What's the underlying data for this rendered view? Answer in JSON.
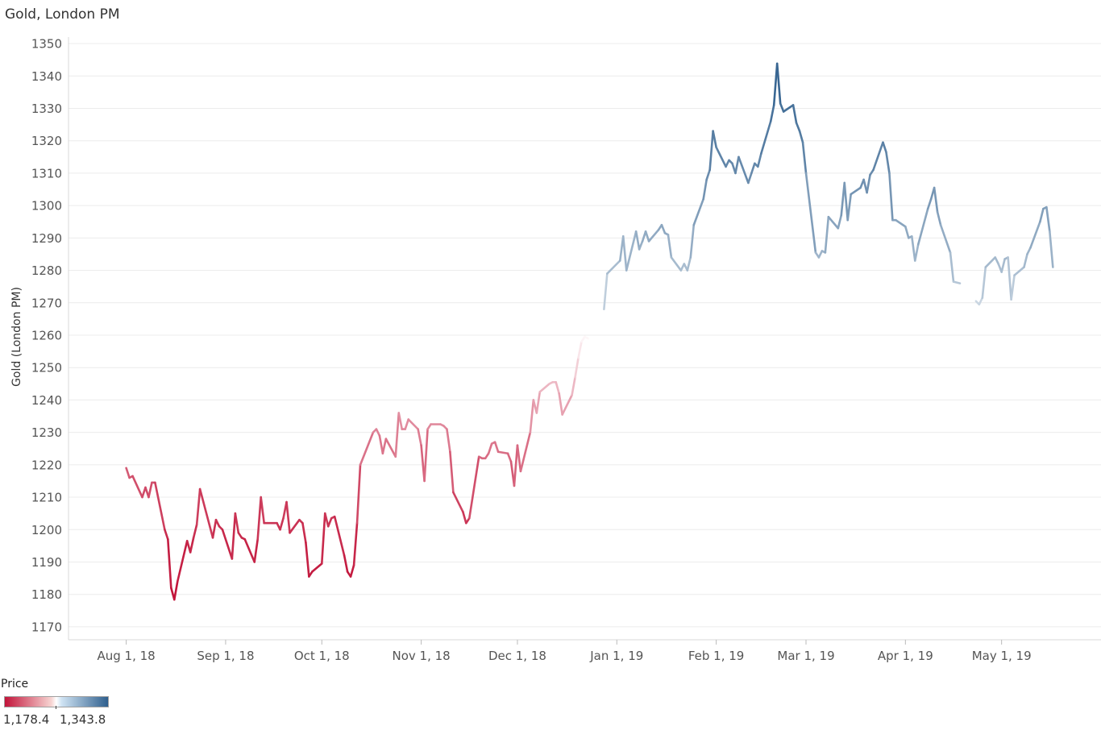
{
  "chart_data": {
    "type": "line",
    "title": "Gold, London PM",
    "ylabel": "Gold (London PM)",
    "xlabel": "",
    "ylim": [
      1166,
      1352
    ],
    "yticks": [
      1170,
      1180,
      1190,
      1200,
      1210,
      1220,
      1230,
      1240,
      1250,
      1260,
      1270,
      1280,
      1290,
      1300,
      1310,
      1320,
      1330,
      1340,
      1350
    ],
    "xlim": [
      "2018-07-14",
      "2019-06-01"
    ],
    "xticks": [
      {
        "date": "2018-08-01",
        "label": "Aug 1, 18"
      },
      {
        "date": "2018-09-01",
        "label": "Sep 1, 18"
      },
      {
        "date": "2018-10-01",
        "label": "Oct 1, 18"
      },
      {
        "date": "2018-11-01",
        "label": "Nov 1, 18"
      },
      {
        "date": "2018-12-01",
        "label": "Dec 1, 18"
      },
      {
        "date": "2019-01-01",
        "label": "Jan 1, 19"
      },
      {
        "date": "2019-02-01",
        "label": "Feb 1, 19"
      },
      {
        "date": "2019-03-01",
        "label": "Mar 1, 19"
      },
      {
        "date": "2019-04-01",
        "label": "Apr 1, 19"
      },
      {
        "date": "2019-05-01",
        "label": "May 1, 19"
      }
    ],
    "grid": true,
    "color_scale": {
      "title": "Price",
      "min": 1178.4,
      "max": 1343.8,
      "min_label": "1,178.4",
      "max_label": "1,343.8",
      "low_color": "#c2143a",
      "mid_color": "#ffffff",
      "high_color": "#2f5f8d"
    },
    "series": [
      {
        "points": [
          [
            "2018-08-01",
            1219
          ],
          [
            "2018-08-02",
            1216
          ],
          [
            "2018-08-03",
            1216.5
          ],
          [
            "2018-08-06",
            1210
          ],
          [
            "2018-08-07",
            1213
          ],
          [
            "2018-08-08",
            1210
          ],
          [
            "2018-08-09",
            1214.5
          ],
          [
            "2018-08-10",
            1214.5
          ],
          [
            "2018-08-13",
            1200
          ],
          [
            "2018-08-14",
            1197
          ],
          [
            "2018-08-15",
            1182
          ],
          [
            "2018-08-16",
            1178.4
          ],
          [
            "2018-08-17",
            1184
          ],
          [
            "2018-08-20",
            1196.5
          ],
          [
            "2018-08-21",
            1193
          ],
          [
            "2018-08-22",
            1197.5
          ],
          [
            "2018-08-23",
            1201.5
          ],
          [
            "2018-08-24",
            1212.5
          ],
          [
            "2018-08-28",
            1197.5
          ],
          [
            "2018-08-29",
            1203
          ],
          [
            "2018-08-30",
            1201
          ],
          [
            "2018-08-31",
            1200
          ],
          [
            "2018-09-03",
            1191
          ],
          [
            "2018-09-04",
            1205
          ],
          [
            "2018-09-05",
            1199
          ],
          [
            "2018-09-06",
            1197.5
          ],
          [
            "2018-09-07",
            1197
          ],
          [
            "2018-09-10",
            1190
          ],
          [
            "2018-09-11",
            1197
          ],
          [
            "2018-09-12",
            1210
          ],
          [
            "2018-09-13",
            1202
          ],
          [
            "2018-09-14",
            1202
          ],
          [
            "2018-09-17",
            1202
          ],
          [
            "2018-09-18",
            1200
          ],
          [
            "2018-09-19",
            1203.5
          ],
          [
            "2018-09-20",
            1208.5
          ],
          [
            "2018-09-21",
            1199
          ],
          [
            "2018-09-24",
            1203
          ],
          [
            "2018-09-25",
            1202
          ],
          [
            "2018-09-26",
            1196
          ],
          [
            "2018-09-27",
            1185.5
          ],
          [
            "2018-09-28",
            1187
          ],
          [
            "2018-10-01",
            1189.5
          ],
          [
            "2018-10-02",
            1205
          ],
          [
            "2018-10-03",
            1201
          ],
          [
            "2018-10-04",
            1203.5
          ],
          [
            "2018-10-05",
            1204
          ],
          [
            "2018-10-08",
            1192
          ],
          [
            "2018-10-09",
            1187
          ],
          [
            "2018-10-10",
            1185.5
          ],
          [
            "2018-10-11",
            1189
          ],
          [
            "2018-10-12",
            1202
          ],
          [
            "2018-10-13",
            1220
          ],
          [
            "2018-10-17",
            1230
          ],
          [
            "2018-10-18",
            1231
          ],
          [
            "2018-10-19",
            1229
          ],
          [
            "2018-10-20",
            1223.5
          ],
          [
            "2018-10-21",
            1228
          ],
          [
            "2018-10-24",
            1222.5
          ],
          [
            "2018-10-25",
            1236
          ],
          [
            "2018-10-26",
            1231
          ],
          [
            "2018-10-27",
            1231
          ],
          [
            "2018-10-28",
            1234
          ],
          [
            "2018-10-31",
            1231
          ],
          [
            "2018-11-01",
            1226
          ],
          [
            "2018-11-02",
            1215
          ],
          [
            "2018-11-03",
            1231
          ],
          [
            "2018-11-04",
            1232.5
          ],
          [
            "2018-11-07",
            1232.5
          ],
          [
            "2018-11-08",
            1232
          ],
          [
            "2018-11-09",
            1231
          ],
          [
            "2018-11-10",
            1224
          ],
          [
            "2018-11-11",
            1211.5
          ],
          [
            "2018-11-14",
            1205.5
          ],
          [
            "2018-11-15",
            1202
          ],
          [
            "2018-11-16",
            1203.5
          ],
          [
            "2018-11-19",
            1222.5
          ],
          [
            "2018-11-20",
            1222
          ],
          [
            "2018-11-21",
            1222
          ],
          [
            "2018-11-22",
            1223.5
          ],
          [
            "2018-11-23",
            1226.5
          ],
          [
            "2018-11-24",
            1227
          ],
          [
            "2018-11-25",
            1224
          ],
          [
            "2018-11-28",
            1223.5
          ],
          [
            "2018-11-29",
            1221
          ],
          [
            "2018-11-30",
            1213.5
          ],
          [
            "2018-12-01",
            1226
          ],
          [
            "2018-12-02",
            1218
          ],
          [
            "2018-12-05",
            1230
          ],
          [
            "2018-12-06",
            1240
          ],
          [
            "2018-12-07",
            1236
          ],
          [
            "2018-12-08",
            1242.5
          ],
          [
            "2018-12-11",
            1245
          ],
          [
            "2018-12-12",
            1245.5
          ],
          [
            "2018-12-13",
            1245.5
          ],
          [
            "2018-12-14",
            1242
          ],
          [
            "2018-12-15",
            1235.5
          ],
          [
            "2018-12-18",
            1241.5
          ],
          [
            "2018-12-19",
            1247
          ],
          [
            "2018-12-20",
            1253
          ],
          [
            "2018-12-21",
            1258
          ],
          [
            "2018-12-22",
            1259.5
          ],
          [
            "2018-12-23",
            1259
          ],
          [
            "2018-12-28",
            1268
          ],
          [
            "2018-12-29",
            1279
          ],
          [
            "2019-01-02",
            1283
          ],
          [
            "2019-01-03",
            1290.5
          ],
          [
            "2019-01-04",
            1280
          ],
          [
            "2019-01-07",
            1292
          ],
          [
            "2019-01-08",
            1286.5
          ],
          [
            "2019-01-09",
            1289
          ],
          [
            "2019-01-10",
            1292
          ],
          [
            "2019-01-11",
            1289
          ],
          [
            "2019-01-14",
            1292.5
          ],
          [
            "2019-01-15",
            1294
          ],
          [
            "2019-01-16",
            1291.5
          ],
          [
            "2019-01-17",
            1291
          ],
          [
            "2019-01-18",
            1284
          ],
          [
            "2019-01-21",
            1280
          ],
          [
            "2019-01-22",
            1282
          ],
          [
            "2019-01-23",
            1280
          ],
          [
            "2019-01-24",
            1284
          ],
          [
            "2019-01-25",
            1294
          ],
          [
            "2019-01-28",
            1302
          ],
          [
            "2019-01-29",
            1308
          ],
          [
            "2019-01-30",
            1311
          ],
          [
            "2019-01-31",
            1323
          ],
          [
            "2019-02-01",
            1318
          ],
          [
            "2019-02-04",
            1312
          ],
          [
            "2019-02-05",
            1314
          ],
          [
            "2019-02-06",
            1313
          ],
          [
            "2019-02-07",
            1310
          ],
          [
            "2019-02-08",
            1315
          ],
          [
            "2019-02-11",
            1307
          ],
          [
            "2019-02-12",
            1310
          ],
          [
            "2019-02-13",
            1313
          ],
          [
            "2019-02-14",
            1312
          ],
          [
            "2019-02-15",
            1316
          ],
          [
            "2019-02-18",
            1326
          ],
          [
            "2019-02-19",
            1331
          ],
          [
            "2019-02-20",
            1343.8
          ],
          [
            "2019-02-21",
            1331.5
          ],
          [
            "2019-02-22",
            1329
          ],
          [
            "2019-02-25",
            1331
          ],
          [
            "2019-02-26",
            1325.5
          ],
          [
            "2019-02-27",
            1323
          ],
          [
            "2019-02-28",
            1319.5
          ],
          [
            "2019-03-01",
            1310
          ],
          [
            "2019-03-04",
            1285.5
          ],
          [
            "2019-03-05",
            1284
          ],
          [
            "2019-03-06",
            1286
          ],
          [
            "2019-03-07",
            1285.5
          ],
          [
            "2019-03-08",
            1296.5
          ],
          [
            "2019-03-11",
            1293
          ],
          [
            "2019-03-12",
            1297
          ],
          [
            "2019-03-13",
            1307
          ],
          [
            "2019-03-14",
            1295.5
          ],
          [
            "2019-03-15",
            1303.5
          ],
          [
            "2019-03-18",
            1305.5
          ],
          [
            "2019-03-19",
            1308
          ],
          [
            "2019-03-20",
            1304
          ],
          [
            "2019-03-21",
            1309.5
          ],
          [
            "2019-03-22",
            1311
          ],
          [
            "2019-03-25",
            1319.5
          ],
          [
            "2019-03-26",
            1316.5
          ],
          [
            "2019-03-27",
            1310
          ],
          [
            "2019-03-28",
            1295.5
          ],
          [
            "2019-03-29",
            1295.5
          ],
          [
            "2019-04-01",
            1293.5
          ],
          [
            "2019-04-02",
            1290
          ],
          [
            "2019-04-03",
            1290.5
          ],
          [
            "2019-04-04",
            1283
          ],
          [
            "2019-04-05",
            1288
          ],
          [
            "2019-04-08",
            1299
          ],
          [
            "2019-04-09",
            1302
          ],
          [
            "2019-04-10",
            1305.5
          ],
          [
            "2019-04-11",
            1298
          ],
          [
            "2019-04-12",
            1294
          ],
          [
            "2019-04-15",
            1285.5
          ],
          [
            "2019-04-16",
            1276.5
          ],
          [
            "2019-04-18",
            1276
          ],
          [
            "2019-04-23",
            1270.5
          ],
          [
            "2019-04-24",
            1269.5
          ],
          [
            "2019-04-25",
            1271.5
          ],
          [
            "2019-04-26",
            1281
          ],
          [
            "2019-04-29",
            1284
          ],
          [
            "2019-04-30",
            1282
          ],
          [
            "2019-05-01",
            1279.5
          ],
          [
            "2019-05-02",
            1283.5
          ],
          [
            "2019-05-03",
            1284
          ],
          [
            "2019-05-04",
            1271
          ],
          [
            "2019-05-05",
            1278.5
          ],
          [
            "2019-05-08",
            1281
          ],
          [
            "2019-05-09",
            1285
          ],
          [
            "2019-05-10",
            1287
          ],
          [
            "2019-05-13",
            1295
          ],
          [
            "2019-05-14",
            1299
          ],
          [
            "2019-05-15",
            1299.5
          ],
          [
            "2019-05-16",
            1292
          ],
          [
            "2019-05-17",
            1281
          ]
        ]
      }
    ]
  }
}
